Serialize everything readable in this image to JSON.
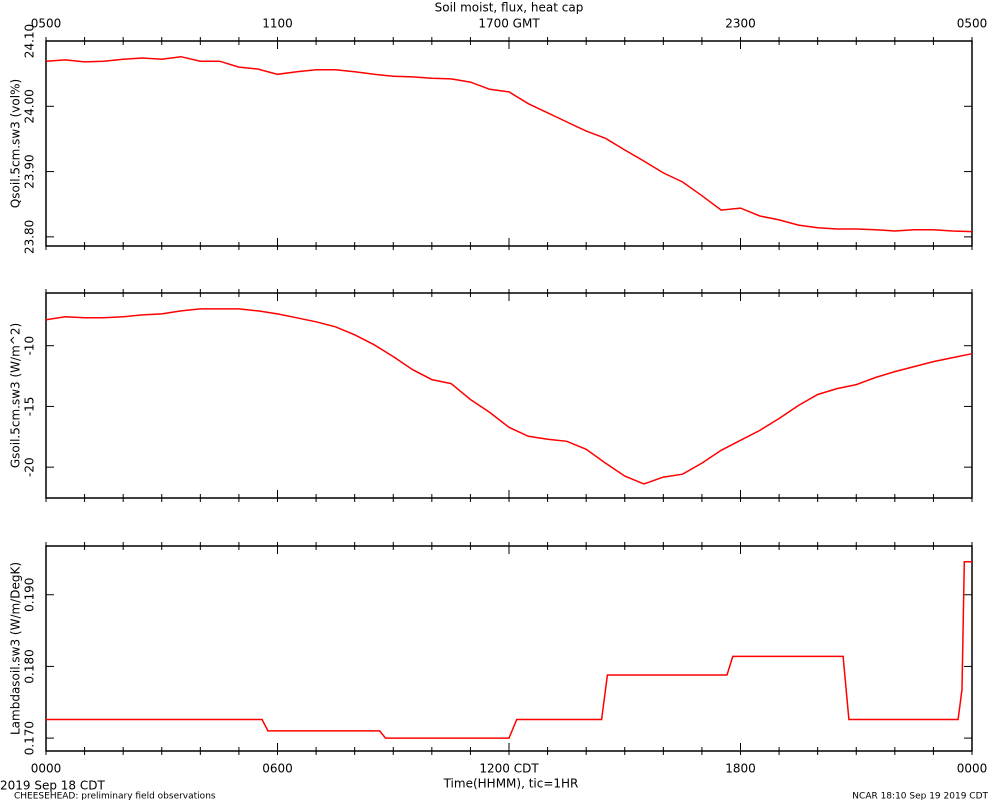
{
  "chart_data": [
    {
      "type": "line",
      "title": "Soil moist, flux, heat cap",
      "ylabel": "Qsoil.5cm.sw3 (vol%)",
      "xlim": [
        0,
        24
      ],
      "x2ticks": [
        {
          "value": 0,
          "label": "0500"
        },
        {
          "value": 6,
          "label": "1100"
        },
        {
          "value": 12,
          "label": "1700 GMT"
        },
        {
          "value": 18,
          "label": "2300"
        },
        {
          "value": 24,
          "label": "0500"
        }
      ],
      "ylim": [
        23.786,
        24.1
      ],
      "yticks": [
        {
          "value": 23.8,
          "label": "23.80"
        },
        {
          "value": 23.9,
          "label": "23.90"
        },
        {
          "value": 24.0,
          "label": "24.00"
        },
        {
          "value": 24.1,
          "label": "24.10"
        }
      ],
      "color": "#ff0000",
      "x": [
        0,
        0.5,
        1,
        1.5,
        2,
        2.5,
        3,
        3.5,
        4,
        4.5,
        5,
        5.5,
        6,
        6.5,
        7,
        7.5,
        8,
        8.5,
        9,
        9.5,
        10,
        10.5,
        11,
        11.5,
        12,
        12.5,
        13,
        13.5,
        14,
        14.5,
        15,
        15.5,
        16,
        16.5,
        17,
        17.5,
        18,
        18.5,
        19,
        19.5,
        20,
        20.5,
        21,
        21.5,
        22,
        22.5,
        23,
        23.5,
        24
      ],
      "values": [
        24.069,
        24.071,
        24.068,
        24.069,
        24.072,
        24.074,
        24.072,
        24.076,
        24.069,
        24.069,
        24.06,
        24.057,
        24.049,
        24.053,
        24.056,
        24.056,
        24.053,
        24.049,
        24.046,
        24.045,
        24.043,
        24.042,
        24.037,
        24.026,
        24.022,
        24.004,
        23.99,
        23.976,
        23.962,
        23.951,
        23.933,
        23.916,
        23.898,
        23.884,
        23.863,
        23.841,
        23.844,
        23.832,
        23.826,
        23.818,
        23.814,
        23.812,
        23.812,
        23.811,
        23.809,
        23.811,
        23.811,
        23.809,
        23.808
      ]
    },
    {
      "type": "line",
      "ylabel": "Gsoil.5cm.sw3 (W/m^2)",
      "xlim": [
        0,
        24
      ],
      "ylim": [
        -22.54,
        -5.66
      ],
      "yticks": [
        -20,
        -15,
        -10
      ],
      "color": "#ff0000",
      "x": [
        0,
        0.5,
        1,
        1.5,
        2,
        2.5,
        3,
        3.5,
        4,
        4.5,
        5,
        5.5,
        6,
        6.5,
        7,
        7.5,
        8,
        8.5,
        9,
        9.5,
        10,
        10.5,
        11,
        11.5,
        12,
        12.5,
        13,
        13.5,
        14,
        14.5,
        15,
        15.5,
        16,
        16.5,
        17,
        17.5,
        18,
        18.5,
        19,
        19.5,
        20,
        20.5,
        21,
        21.5,
        22,
        22.5,
        23,
        23.5,
        24
      ],
      "values": [
        -7.87,
        -7.62,
        -7.7,
        -7.7,
        -7.62,
        -7.46,
        -7.38,
        -7.13,
        -6.97,
        -6.97,
        -6.97,
        -7.13,
        -7.38,
        -7.7,
        -8.03,
        -8.44,
        -9.1,
        -9.92,
        -10.9,
        -11.97,
        -12.79,
        -13.12,
        -14.43,
        -15.49,
        -16.72,
        -17.46,
        -17.71,
        -17.87,
        -18.53,
        -19.67,
        -20.74,
        -21.39,
        -20.82,
        -20.58,
        -19.67,
        -18.61,
        -17.79,
        -16.97,
        -15.99,
        -14.92,
        -14.02,
        -13.53,
        -13.2,
        -12.62,
        -12.13,
        -11.72,
        -11.31,
        -10.98,
        -10.66
      ]
    },
    {
      "type": "line",
      "ylabel": "Lambdasoil.sw3 (W/m/DegK)",
      "xlabel": "Time(HHMM), tic=1HR",
      "xlim": [
        0,
        24
      ],
      "xticks": [
        {
          "value": 0,
          "label": "0000"
        },
        {
          "value": 6,
          "label": "0600"
        },
        {
          "value": 12,
          "label": "1200 CDT"
        },
        {
          "value": 18,
          "label": "1800"
        },
        {
          "value": 24,
          "label": "0000"
        }
      ],
      "ylim": [
        0.1682,
        0.1968
      ],
      "yticks": [
        {
          "value": 0.17,
          "label": "0.170"
        },
        {
          "value": 0.18,
          "label": "0.180"
        },
        {
          "value": 0.19,
          "label": "0.190"
        }
      ],
      "color": "#ff0000",
      "x": [
        0,
        5.6,
        5.75,
        8.65,
        8.8,
        12,
        12.2,
        14.4,
        14.55,
        17.65,
        17.8,
        20.66,
        20.81,
        23.64,
        23.74,
        23.8,
        24
      ],
      "values": [
        0.1726,
        0.1726,
        0.171,
        0.171,
        0.17,
        0.17,
        0.1726,
        0.1726,
        0.1788,
        0.1788,
        0.1814,
        0.1814,
        0.1726,
        0.1726,
        0.1768,
        0.1946,
        0.1946
      ]
    }
  ],
  "footer": {
    "date": "2019 Sep 18 CDT",
    "project": "CHEESEHEAD: preliminary field observations",
    "stamp": "NCAR 18:10 Sep 19 2019 CDT"
  }
}
